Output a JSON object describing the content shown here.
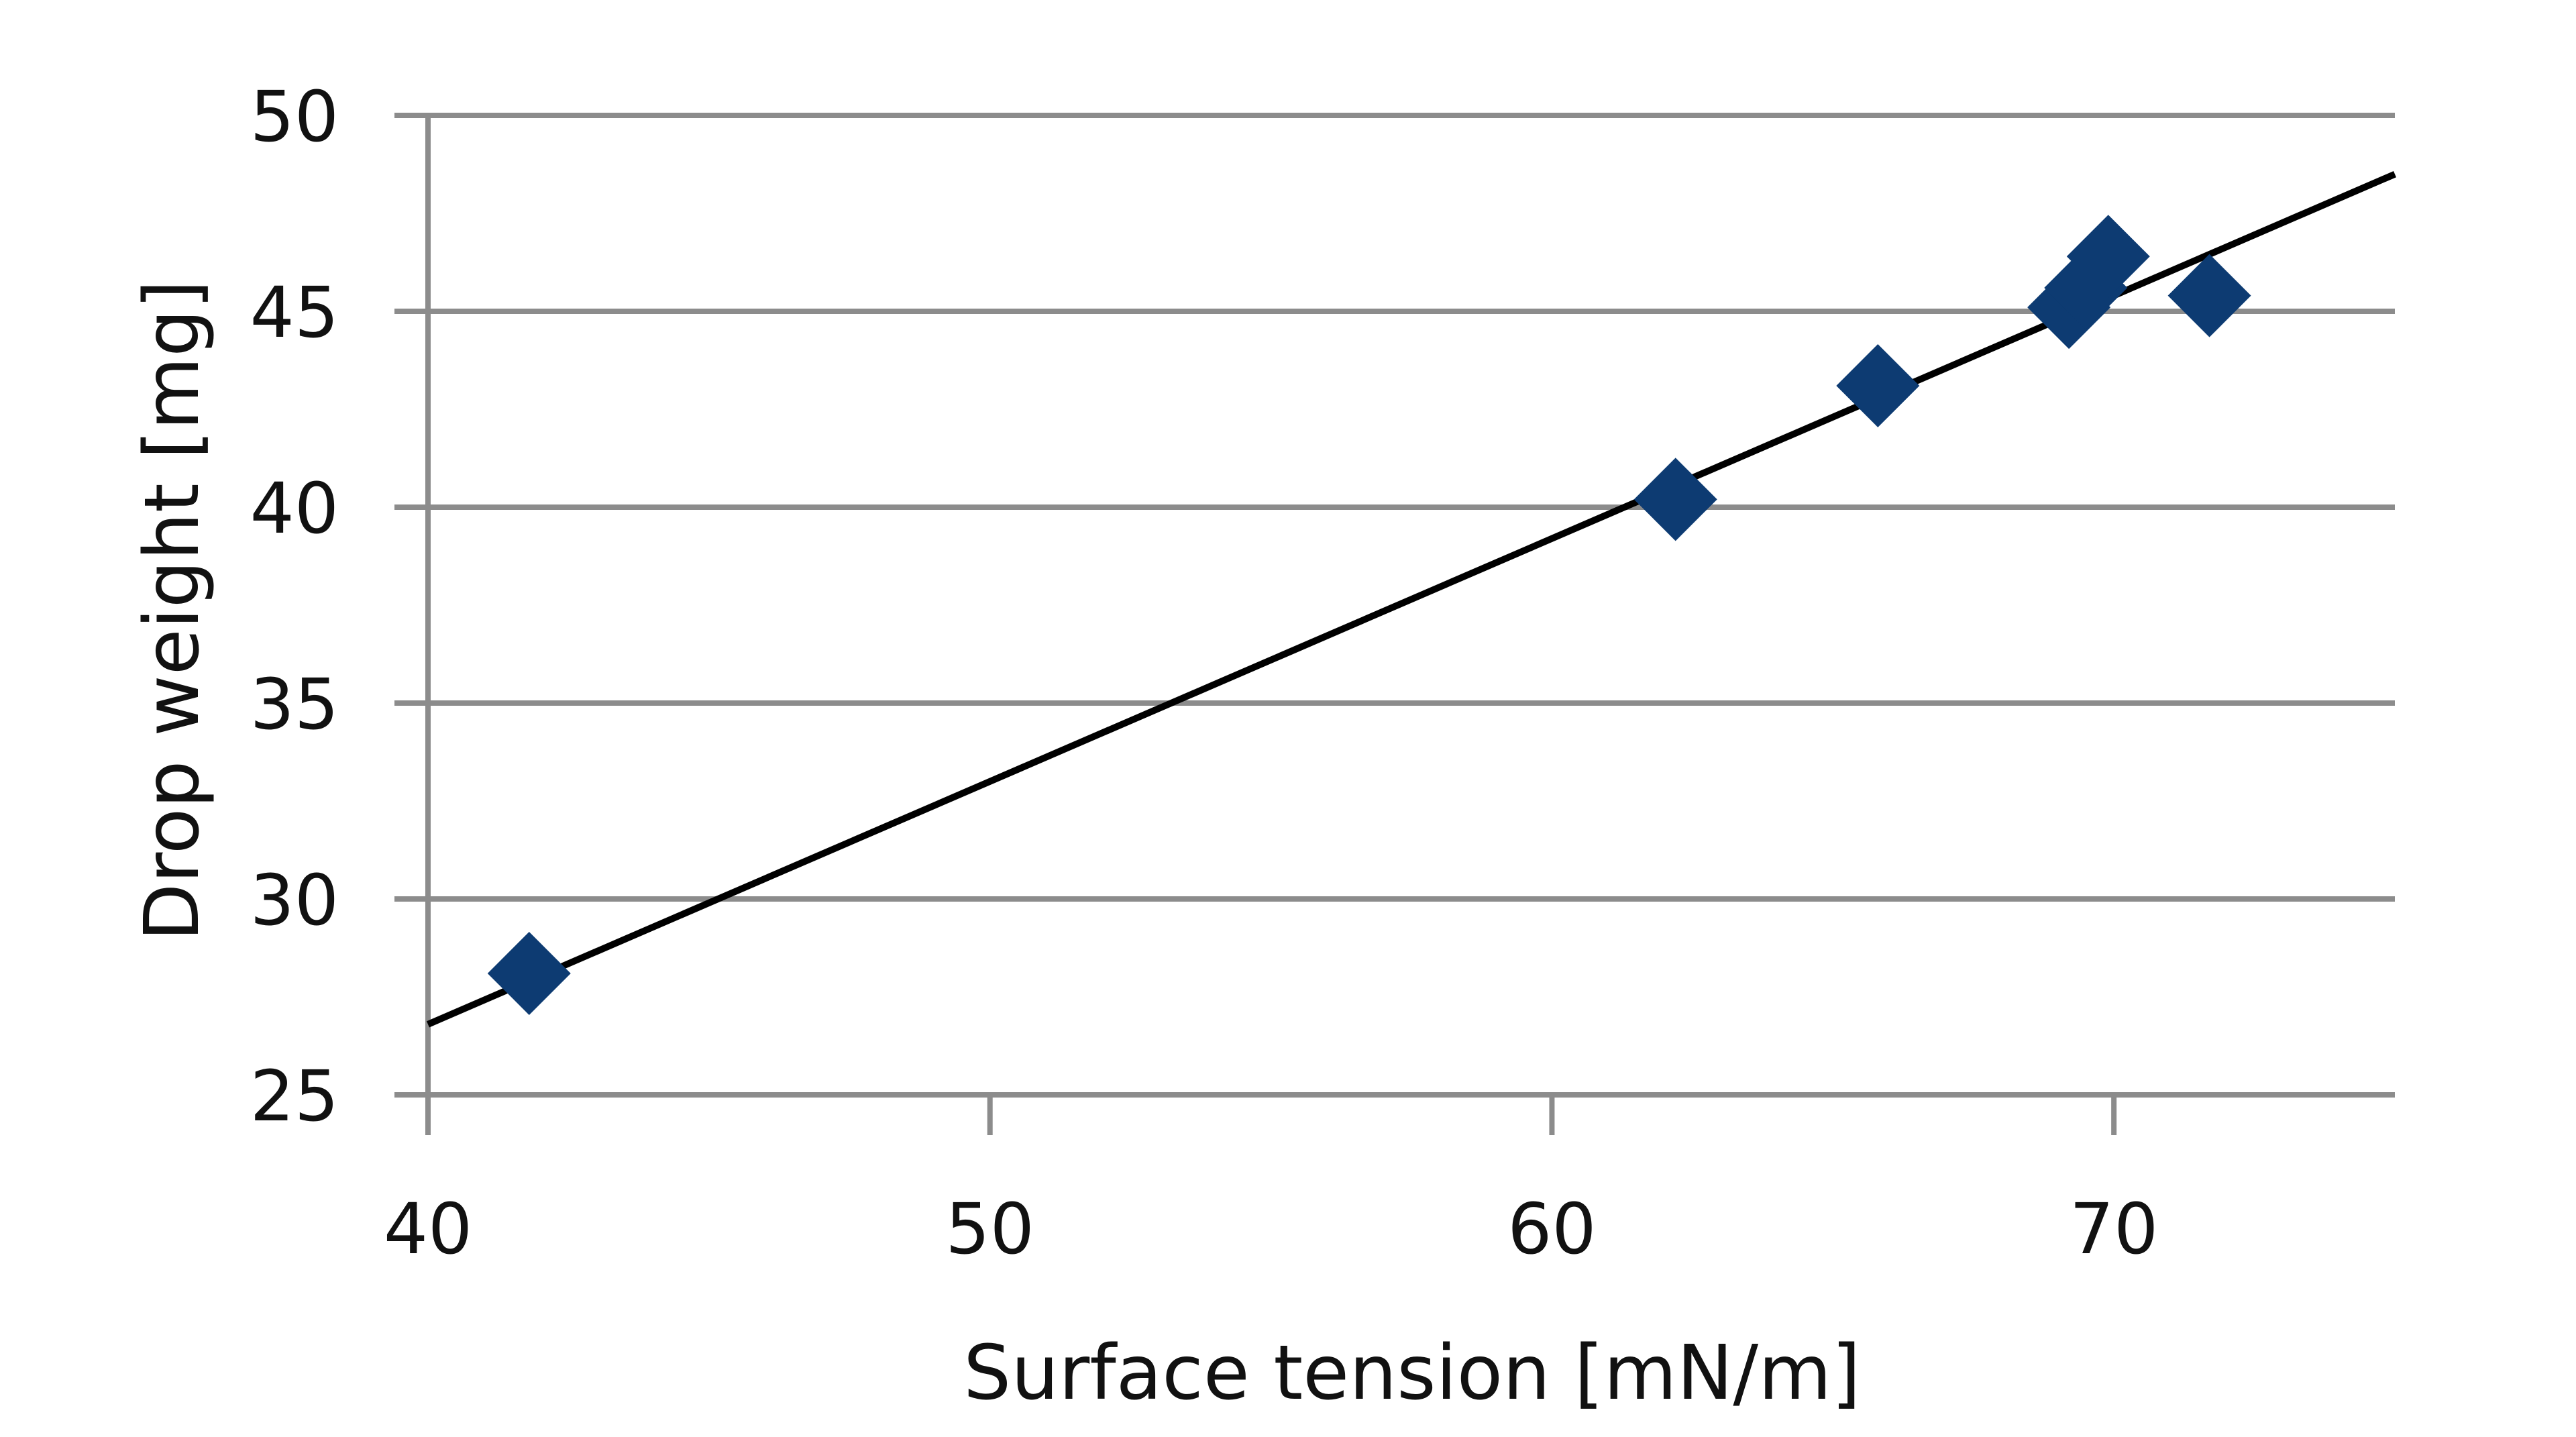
{
  "chart_data": {
    "type": "scatter",
    "title": "",
    "xlabel": "Surface tension [mN/m]",
    "ylabel": "Drop weight [mg]",
    "xlim": [
      40,
      75
    ],
    "ylim": [
      25,
      50
    ],
    "x_ticks": [
      40,
      50,
      60,
      70
    ],
    "y_ticks": [
      25,
      30,
      35,
      40,
      45,
      50
    ],
    "grid": "horizontal",
    "legend": "none",
    "marker": "diamond",
    "marker_color": "#0d3b72",
    "trendline": {
      "type": "linear",
      "color": "#000000",
      "from": [
        40,
        26.8
      ],
      "to": [
        75,
        48.5
      ]
    },
    "series": [
      {
        "x": [
          41.8,
          62.2,
          65.8,
          69.2,
          69.5,
          69.9,
          71.7
        ],
        "y": [
          28.1,
          40.2,
          43.1,
          45.1,
          45.6,
          46.4,
          45.4
        ]
      }
    ]
  }
}
